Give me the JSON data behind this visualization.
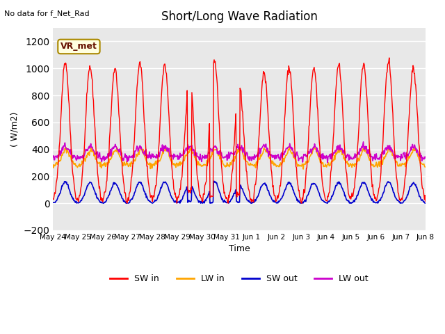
{
  "title": "Short/Long Wave Radiation",
  "xlabel": "Time",
  "ylabel": "( W/m2)",
  "ylim": [
    -200,
    1300
  ],
  "yticks": [
    -200,
    0,
    200,
    400,
    600,
    800,
    1000,
    1200
  ],
  "xtick_labels": [
    "May 24",
    "May 25",
    "May 26",
    "May 27",
    "May 28",
    "May 29",
    "May 30",
    "May 31",
    "Jun 1",
    "Jun 2",
    "Jun 3",
    "Jun 4",
    "Jun 5",
    "Jun 6",
    "Jun 7",
    "Jun 8"
  ],
  "annotation_text": "No data for f_Net_Rad",
  "legend_label": "VR_met",
  "sw_in_color": "#FF0000",
  "lw_in_color": "#FFA500",
  "sw_out_color": "#0000CD",
  "lw_out_color": "#CC00CC",
  "background_color": "#FFFFFF",
  "plot_bg_color": "#E8E8E8",
  "grid_color": "#FFFFFF",
  "num_days": 15,
  "points_per_day": 48
}
